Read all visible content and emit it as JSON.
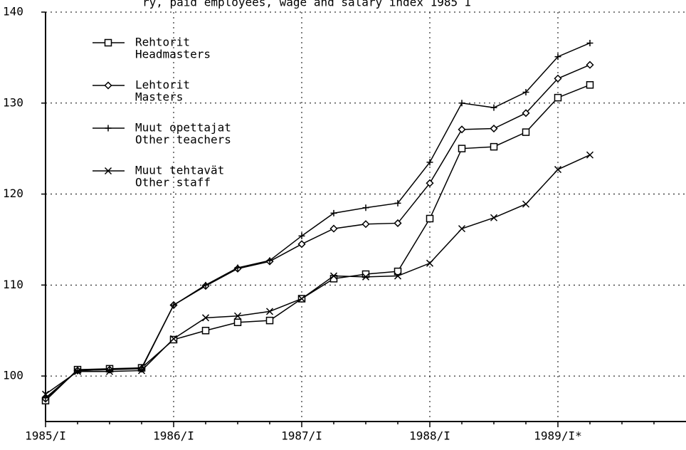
{
  "chart_data": {
    "type": "line",
    "title": "ry, paid employees, wage and salary index 1985 I",
    "categories": [
      "1985/I",
      null,
      null,
      null,
      "1986/I",
      null,
      null,
      null,
      "1987/I",
      null,
      null,
      null,
      "1988/I",
      null,
      null,
      null,
      "1989/I*",
      null,
      null,
      null
    ],
    "series": [
      {
        "name": "Rehtorit",
        "name_en": "Headmasters",
        "marker": "square",
        "color": "#000000",
        "values": [
          97.3,
          100.7,
          100.8,
          100.9,
          104.0,
          105.0,
          105.9,
          106.1,
          108.5,
          110.7,
          111.2,
          111.5,
          117.3,
          125.0,
          125.2,
          126.8,
          130.6,
          132.0,
          null,
          null
        ]
      },
      {
        "name": "Lehtorit",
        "name_en": "Masters",
        "marker": "diamond",
        "color": "#000000",
        "values": [
          97.5,
          100.6,
          100.7,
          100.8,
          107.8,
          109.9,
          111.8,
          112.6,
          114.5,
          116.2,
          116.7,
          116.8,
          121.2,
          127.1,
          127.2,
          128.9,
          132.7,
          134.2,
          null,
          null
        ]
      },
      {
        "name": "Muut opettajat",
        "name_en": "Other teachers",
        "marker": "plus",
        "color": "#000000",
        "values": [
          97.6,
          100.6,
          100.7,
          100.9,
          107.8,
          110.0,
          111.9,
          112.7,
          115.4,
          117.9,
          118.5,
          119.0,
          123.5,
          130.0,
          129.5,
          131.2,
          135.1,
          136.6,
          null,
          null
        ]
      },
      {
        "name": "Muut tehtavät",
        "name_en": "Other staff",
        "marker": "cross",
        "color": "#000000",
        "values": [
          98.0,
          100.5,
          100.5,
          100.6,
          104.1,
          106.4,
          106.6,
          107.1,
          108.5,
          111.0,
          110.9,
          111.0,
          112.4,
          116.2,
          117.4,
          118.9,
          122.7,
          124.3,
          null,
          null
        ]
      }
    ],
    "ylim": [
      95,
      140
    ],
    "yticks": [
      100,
      110,
      120,
      130,
      140
    ],
    "grid": true,
    "legend": "upper left"
  }
}
